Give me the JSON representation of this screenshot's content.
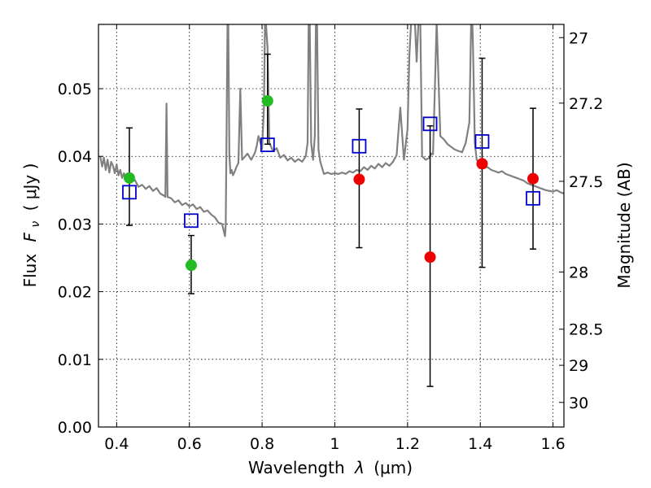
{
  "chart_data": {
    "type": "scatter",
    "xlabel_text": "Wavelength",
    "xlabel_symbol": "λ",
    "xlabel_unit": "(μm)",
    "ylabel_text": "Flux",
    "ylabel_symbol": "F",
    "ylabel_sub": "ν",
    "ylabel_unit": "( μJy )",
    "y2label": "Magnitude (AB)",
    "xlim": [
      0.35,
      1.63
    ],
    "ylim": [
      0.0,
      0.0595
    ],
    "x_ticks": [
      0.4,
      0.6,
      0.8,
      1.0,
      1.2,
      1.4,
      1.6
    ],
    "x_tick_labels": [
      "0.4",
      "0.6",
      "0.8",
      "1",
      "1.2",
      "1.4",
      "1.6"
    ],
    "y_ticks": [
      0.0,
      0.01,
      0.02,
      0.03,
      0.04,
      0.05
    ],
    "y_tick_labels": [
      "0.00",
      "0.01",
      "0.02",
      "0.03",
      "0.04",
      "0.05"
    ],
    "mag_ticks": [
      27,
      27.2,
      27.5,
      28,
      28.5,
      29,
      30
    ],
    "mag_tick_labels": [
      "27",
      "27.2",
      "27.5",
      "28",
      "28.5",
      "29",
      "30"
    ],
    "mag_zero_point": 23.9,
    "grid": true,
    "colors": {
      "model": "#808080",
      "green": "#22bb22",
      "red": "#ee0000",
      "square": "#0000cc",
      "error": "#000000"
    },
    "model_spectrum": {
      "x": [
        0.355,
        0.36,
        0.365,
        0.37,
        0.375,
        0.38,
        0.385,
        0.39,
        0.395,
        0.4,
        0.405,
        0.41,
        0.415,
        0.42,
        0.425,
        0.43,
        0.435,
        0.44,
        0.45,
        0.46,
        0.47,
        0.48,
        0.49,
        0.5,
        0.51,
        0.52,
        0.53,
        0.534,
        0.537,
        0.54,
        0.55,
        0.56,
        0.57,
        0.58,
        0.59,
        0.6,
        0.61,
        0.62,
        0.63,
        0.64,
        0.65,
        0.66,
        0.67,
        0.68,
        0.69,
        0.698,
        0.7,
        0.702,
        0.705,
        0.707,
        0.71,
        0.713,
        0.716,
        0.72,
        0.725,
        0.73,
        0.735,
        0.74,
        0.745,
        0.75,
        0.76,
        0.77,
        0.78,
        0.785,
        0.79,
        0.8,
        0.805,
        0.808,
        0.81,
        0.815,
        0.82,
        0.83,
        0.84,
        0.85,
        0.86,
        0.87,
        0.88,
        0.89,
        0.9,
        0.91,
        0.92,
        0.925,
        0.928,
        0.931,
        0.935,
        0.94,
        0.945,
        0.948,
        0.951,
        0.955,
        0.96,
        0.97,
        0.98,
        0.99,
        1.0,
        1.01,
        1.02,
        1.03,
        1.04,
        1.05,
        1.06,
        1.07,
        1.08,
        1.09,
        1.1,
        1.11,
        1.12,
        1.13,
        1.14,
        1.15,
        1.16,
        1.17,
        1.18,
        1.19,
        1.2,
        1.205,
        1.21,
        1.215,
        1.22,
        1.225,
        1.23,
        1.235,
        1.24,
        1.25,
        1.26,
        1.265,
        1.27,
        1.275,
        1.28,
        1.29,
        1.3,
        1.31,
        1.32,
        1.33,
        1.34,
        1.35,
        1.36,
        1.37,
        1.375,
        1.378,
        1.38,
        1.385,
        1.39,
        1.4,
        1.41,
        1.42,
        1.43,
        1.44,
        1.45,
        1.46,
        1.47,
        1.48,
        1.49,
        1.5,
        1.51,
        1.52,
        1.53,
        1.54,
        1.55,
        1.56,
        1.57,
        1.58,
        1.59,
        1.6,
        1.61,
        1.62,
        1.63
      ],
      "y": [
        0.04,
        0.0385,
        0.0398,
        0.038,
        0.0395,
        0.0376,
        0.0392,
        0.0386,
        0.0375,
        0.0388,
        0.0372,
        0.038,
        0.0368,
        0.0375,
        0.0365,
        0.0372,
        0.0368,
        0.0362,
        0.0365,
        0.0355,
        0.0358,
        0.0352,
        0.0356,
        0.0349,
        0.0353,
        0.0345,
        0.0342,
        0.034,
        0.0478,
        0.034,
        0.0338,
        0.0332,
        0.0335,
        0.0328,
        0.0331,
        0.0326,
        0.0329,
        0.0322,
        0.0325,
        0.0318,
        0.032,
        0.0314,
        0.031,
        0.0302,
        0.03,
        0.0282,
        0.03,
        0.042,
        0.06,
        0.06,
        0.04,
        0.0375,
        0.038,
        0.0372,
        0.0378,
        0.0385,
        0.039,
        0.05,
        0.0395,
        0.0398,
        0.0404,
        0.0395,
        0.0405,
        0.0415,
        0.043,
        0.0412,
        0.047,
        0.06,
        0.06,
        0.056,
        0.042,
        0.0408,
        0.0412,
        0.0398,
        0.0402,
        0.0394,
        0.0398,
        0.0392,
        0.0396,
        0.0392,
        0.04,
        0.042,
        0.06,
        0.06,
        0.042,
        0.0395,
        0.043,
        0.06,
        0.06,
        0.041,
        0.0392,
        0.0374,
        0.0376,
        0.0374,
        0.0375,
        0.0374,
        0.0376,
        0.0374,
        0.0378,
        0.0376,
        0.038,
        0.0378,
        0.0384,
        0.038,
        0.0386,
        0.0382,
        0.0389,
        0.0384,
        0.039,
        0.0386,
        0.0392,
        0.0402,
        0.0472,
        0.0395,
        0.044,
        0.055,
        0.06,
        0.06,
        0.06,
        0.054,
        0.06,
        0.06,
        0.04,
        0.0395,
        0.0398,
        0.0404,
        0.0403,
        0.05,
        0.06,
        0.043,
        0.0425,
        0.0418,
        0.0414,
        0.041,
        0.0408,
        0.0406,
        0.042,
        0.045,
        0.06,
        0.06,
        0.056,
        0.042,
        0.0395,
        0.0388,
        0.0384,
        0.0384,
        0.038,
        0.0378,
        0.0376,
        0.0378,
        0.0374,
        0.0372,
        0.037,
        0.0368,
        0.0366,
        0.0364,
        0.036,
        0.0358,
        0.0356,
        0.0354,
        0.0352,
        0.035,
        0.0349,
        0.0348,
        0.035,
        0.0347,
        0.0345
      ]
    },
    "green_points": [
      {
        "x": 0.435,
        "y": 0.0368,
        "err_low": 0.0298,
        "err_high": 0.0442
      },
      {
        "x": 0.605,
        "y": 0.0239,
        "err_low": 0.0197,
        "err_high": 0.0283
      },
      {
        "x": 0.815,
        "y": 0.0482,
        "err_low": 0.0418,
        "err_high": 0.0551
      }
    ],
    "red_points": [
      {
        "x": 1.067,
        "y": 0.0366,
        "err_low": 0.0265,
        "err_high": 0.047
      },
      {
        "x": 1.262,
        "y": 0.0251,
        "err_low": 0.006,
        "err_high": 0.0445
      },
      {
        "x": 1.405,
        "y": 0.0389,
        "err_low": 0.0236,
        "err_high": 0.0545
      },
      {
        "x": 1.545,
        "y": 0.0367,
        "err_low": 0.0263,
        "err_high": 0.0471
      }
    ],
    "model_squares": [
      {
        "x": 0.435,
        "y": 0.0347
      },
      {
        "x": 0.605,
        "y": 0.0305
      },
      {
        "x": 0.815,
        "y": 0.0417
      },
      {
        "x": 1.067,
        "y": 0.0415
      },
      {
        "x": 1.262,
        "y": 0.0448
      },
      {
        "x": 1.405,
        "y": 0.0422
      },
      {
        "x": 1.545,
        "y": 0.0338
      }
    ]
  }
}
